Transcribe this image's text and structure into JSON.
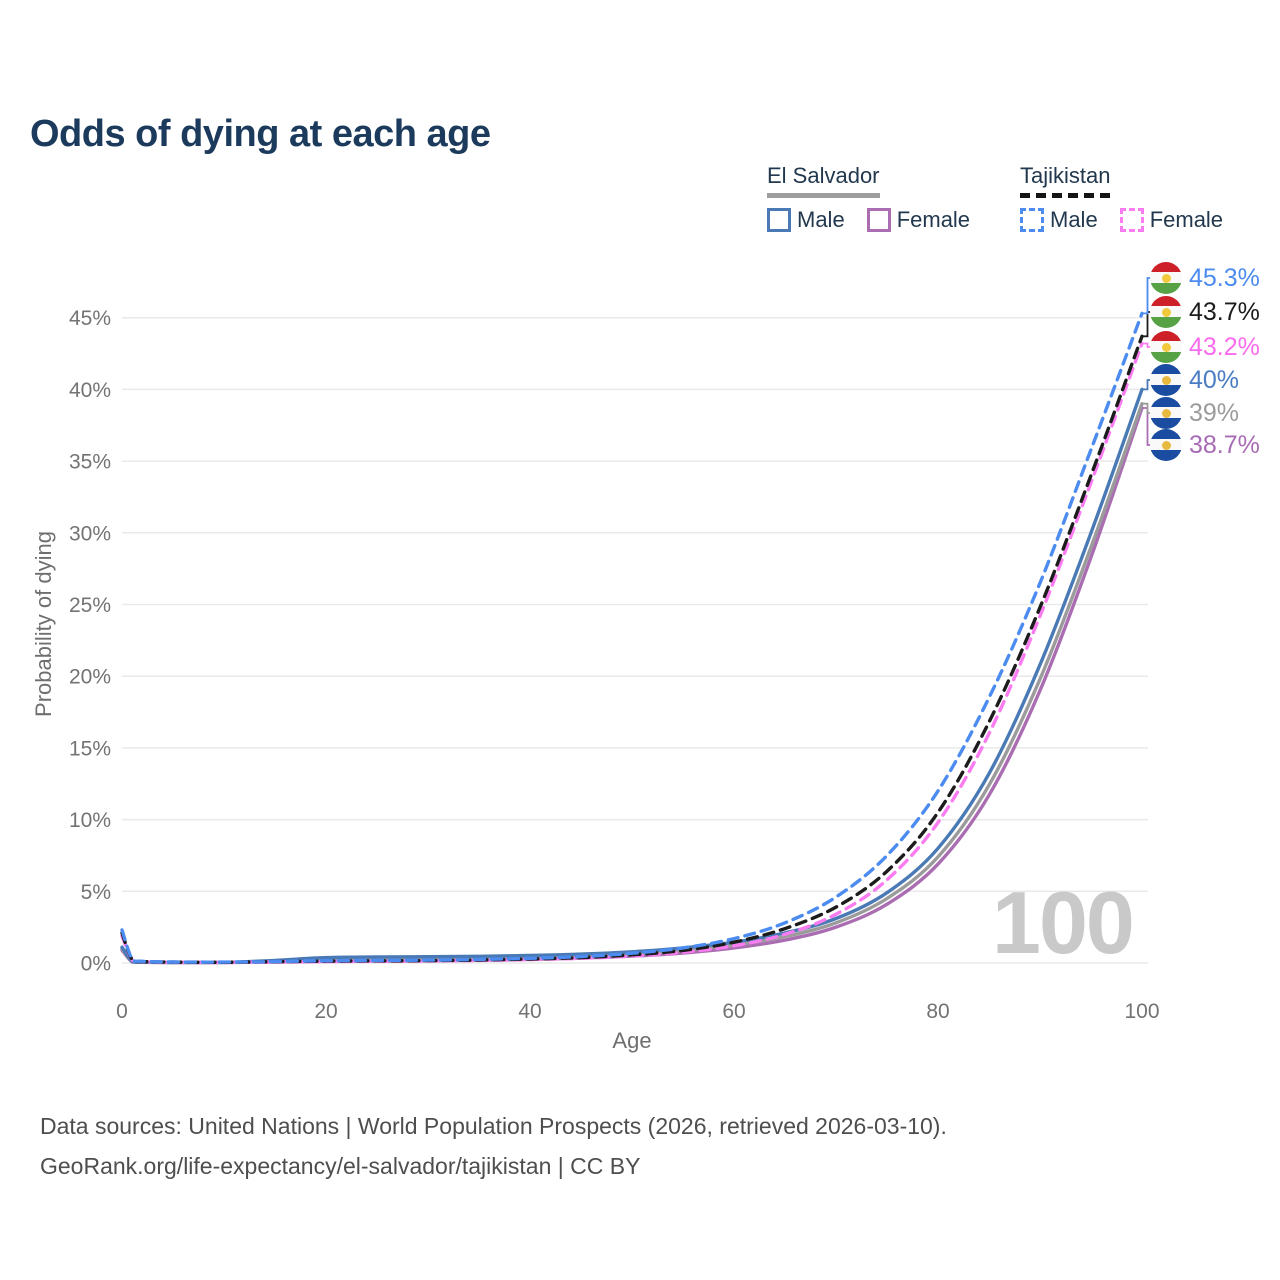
{
  "header": {
    "title": "Odds of dying at each age"
  },
  "theme": {
    "title_color": "#1b3a5c",
    "tick_color": "#737373",
    "grid_color": "#e9e9e9",
    "axis_title_color": "#6f6f6f",
    "footer_color": "#4e4e4e",
    "watermark_color": "#c9c9c9",
    "legend_text_color": "#22384e"
  },
  "legend": {
    "groups": [
      {
        "name": "El Salvador",
        "line_style": "solid",
        "underline_color": "#9e9e9e",
        "items": [
          {
            "label": "Male",
            "color": "#4a7ab5",
            "style": "solid"
          },
          {
            "label": "Female",
            "color": "#aa6db2",
            "style": "solid"
          }
        ]
      },
      {
        "name": "Tajikistan",
        "line_style": "dashed",
        "underline_color": "#141414",
        "items": [
          {
            "label": "Male",
            "color": "#4c8bf0",
            "style": "dashed"
          },
          {
            "label": "Female",
            "color": "#fa7cf0",
            "style": "dashed"
          }
        ]
      }
    ]
  },
  "chart_data": {
    "type": "line",
    "title": "Odds of dying at each age",
    "xlabel": "Age",
    "ylabel": "Probability of dying",
    "xlim": [
      0,
      100
    ],
    "ylim_percent": [
      0,
      47
    ],
    "grid": "horizontal",
    "legend_position": "top-right",
    "hover_age_label": "100",
    "x_ticks": [
      {
        "v": 0,
        "label": "0"
      },
      {
        "v": 20,
        "label": "20"
      },
      {
        "v": 40,
        "label": "40"
      },
      {
        "v": 60,
        "label": "60"
      },
      {
        "v": 80,
        "label": "80"
      },
      {
        "v": 100,
        "label": "100"
      }
    ],
    "y_ticks": [
      {
        "v": 0,
        "label": "0%"
      },
      {
        "v": 5,
        "label": "5%"
      },
      {
        "v": 10,
        "label": "10%"
      },
      {
        "v": 15,
        "label": "15%"
      },
      {
        "v": 20,
        "label": "20%"
      },
      {
        "v": 25,
        "label": "25%"
      },
      {
        "v": 30,
        "label": "30%"
      },
      {
        "v": 35,
        "label": "35%"
      },
      {
        "v": 40,
        "label": "40%"
      },
      {
        "v": 45,
        "label": "45%"
      }
    ],
    "ages": [
      0,
      1,
      2,
      5,
      10,
      15,
      20,
      25,
      30,
      35,
      40,
      45,
      50,
      55,
      60,
      65,
      70,
      75,
      80,
      85,
      90,
      95,
      100
    ],
    "series": [
      {
        "id": "el-salvador-female",
        "name": "El Salvador Female",
        "color": "#aa6db2",
        "dash": false,
        "end_value": 38.7,
        "end_label": "38.7%",
        "values": [
          0.9,
          0.08,
          0.05,
          0.03,
          0.03,
          0.07,
          0.11,
          0.13,
          0.15,
          0.19,
          0.25,
          0.34,
          0.48,
          0.7,
          1.05,
          1.6,
          2.5,
          4.1,
          6.9,
          11.7,
          19.0,
          28.3,
          38.7
        ]
      },
      {
        "id": "el-salvador-both",
        "name": "El Salvador Both sexes",
        "color": "#9b9b9b",
        "dash": false,
        "end_value": 39.0,
        "end_label": "39%",
        "values": [
          1.0,
          0.09,
          0.05,
          0.03,
          0.04,
          0.12,
          0.24,
          0.27,
          0.29,
          0.32,
          0.38,
          0.47,
          0.62,
          0.87,
          1.25,
          1.85,
          2.8,
          4.5,
          7.4,
          12.4,
          19.8,
          29.0,
          39.0
        ]
      },
      {
        "id": "el-salvador-male",
        "name": "El Salvador Male",
        "color": "#4a7ab5",
        "dash": false,
        "end_value": 40.0,
        "end_label": "40%",
        "values": [
          1.1,
          0.1,
          0.06,
          0.04,
          0.05,
          0.18,
          0.38,
          0.42,
          0.44,
          0.47,
          0.52,
          0.62,
          0.78,
          1.05,
          1.45,
          2.1,
          3.1,
          4.9,
          8.0,
          13.2,
          20.8,
          30.0,
          40.0
        ]
      },
      {
        "id": "tajikistan-female",
        "name": "Tajikistan Female",
        "color": "#fa7cf0",
        "dash": true,
        "end_value": 43.2,
        "end_label": "43.2%",
        "values": [
          1.9,
          0.2,
          0.09,
          0.05,
          0.04,
          0.07,
          0.1,
          0.12,
          0.14,
          0.18,
          0.24,
          0.33,
          0.48,
          0.75,
          1.2,
          2.0,
          3.4,
          5.8,
          9.8,
          16.0,
          24.2,
          33.5,
          43.2
        ]
      },
      {
        "id": "tajikistan-both",
        "name": "Tajikistan Both sexes",
        "color": "#1c1c1c",
        "dash": true,
        "end_value": 43.7,
        "end_label": "43.7%",
        "values": [
          2.1,
          0.22,
          0.1,
          0.06,
          0.05,
          0.09,
          0.13,
          0.15,
          0.17,
          0.21,
          0.28,
          0.38,
          0.57,
          0.88,
          1.45,
          2.4,
          3.9,
          6.4,
          10.5,
          16.8,
          24.8,
          34.0,
          43.7
        ]
      },
      {
        "id": "tajikistan-male",
        "name": "Tajikistan Male",
        "color": "#4c8bf0",
        "dash": true,
        "end_value": 45.3,
        "end_label": "45.3%",
        "values": [
          2.3,
          0.25,
          0.12,
          0.07,
          0.06,
          0.1,
          0.16,
          0.18,
          0.2,
          0.25,
          0.33,
          0.45,
          0.68,
          1.05,
          1.7,
          2.8,
          4.6,
          7.5,
          12.0,
          18.5,
          26.5,
          35.8,
          45.3
        ]
      }
    ]
  },
  "end_labels": [
    {
      "series": "tajikistan-male",
      "flag": "tj",
      "value": "45.3%",
      "color": "#4c8bf0"
    },
    {
      "series": "tajikistan-both",
      "flag": "tj",
      "value": "43.7%",
      "color": "#1c1c1c"
    },
    {
      "series": "tajikistan-female",
      "flag": "tj",
      "value": "43.2%",
      "color": "#fa6bee"
    },
    {
      "series": "el-salvador-male",
      "flag": "sv",
      "value": "40%",
      "color": "#4a7cc4"
    },
    {
      "series": "el-salvador-both",
      "flag": "sv",
      "value": "39%",
      "color": "#9b9b9b"
    },
    {
      "series": "el-salvador-female",
      "flag": "sv",
      "value": "38.7%",
      "color": "#a86bb5"
    }
  ],
  "footer": {
    "line1": "Data sources: United Nations | World Population Prospects (2026, retrieved 2026-03-10).",
    "line2": "GeoRank.org/life-expectancy/el-salvador/tajikistan | CC BY"
  }
}
